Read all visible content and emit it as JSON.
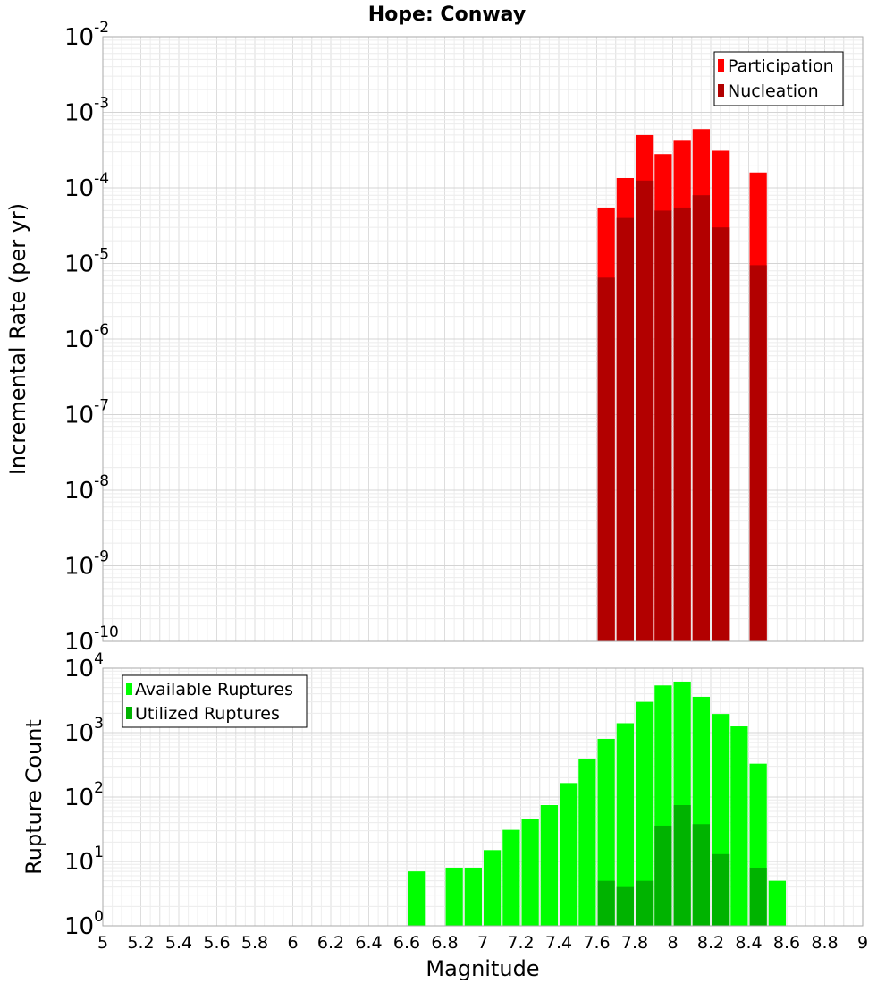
{
  "chart_data": [
    {
      "type": "bar",
      "title": "Hope: Conway",
      "ylabel": "Incremental Rate (per yr)",
      "y_scale": "log",
      "ylim": [
        1e-10,
        0.01
      ],
      "xlim": [
        5,
        9
      ],
      "y_tick_exponents": [
        "-10",
        "-9",
        "-8",
        "-7",
        "-6",
        "-5",
        "-4",
        "-3",
        "-2"
      ],
      "legend_position": "top-right",
      "grid": true,
      "x": [
        7.65,
        7.75,
        7.85,
        7.95,
        8.05,
        8.15,
        8.25,
        8.45
      ],
      "series": [
        {
          "name": "Participation",
          "color": "#ff0000",
          "values": [
            5.5e-05,
            0.000135,
            0.0005,
            0.00028,
            0.00042,
            0.0006,
            0.00031,
            0.00016
          ]
        },
        {
          "name": "Nucleation",
          "color": "#b20000",
          "values": [
            6.5e-06,
            4e-05,
            0.000125,
            5e-05,
            5.5e-05,
            8e-05,
            3e-05,
            9.5e-06
          ]
        }
      ]
    },
    {
      "type": "bar",
      "xlabel": "Magnitude",
      "ylabel": "Rupture Count",
      "y_scale": "log",
      "ylim": [
        1,
        10000
      ],
      "xlim": [
        5,
        9
      ],
      "x_ticks": [
        "5",
        "5.2",
        "5.4",
        "5.6",
        "5.8",
        "6",
        "6.2",
        "6.4",
        "6.6",
        "6.8",
        "7",
        "7.2",
        "7.4",
        "7.6",
        "7.8",
        "8",
        "8.2",
        "8.4",
        "8.6",
        "8.8",
        "9"
      ],
      "y_tick_exponents": [
        "0",
        "1",
        "2",
        "3",
        "4"
      ],
      "legend_position": "top-left",
      "grid": true,
      "x": [
        6.65,
        6.75,
        6.85,
        6.95,
        7.05,
        7.15,
        7.25,
        7.35,
        7.45,
        7.55,
        7.65,
        7.75,
        7.85,
        7.95,
        8.05,
        8.15,
        8.25,
        8.35,
        8.45,
        8.55
      ],
      "series": [
        {
          "name": "Available Ruptures",
          "color": "#00ff00",
          "values": [
            7,
            null,
            8,
            8,
            15,
            31,
            46,
            75,
            165,
            390,
            800,
            1400,
            3000,
            5400,
            6200,
            3600,
            1950,
            1250,
            330,
            5
          ]
        },
        {
          "name": "Utilized Ruptures",
          "color": "#00b300",
          "values": [
            null,
            null,
            null,
            null,
            null,
            null,
            null,
            null,
            null,
            null,
            5,
            4,
            5,
            36,
            75,
            38,
            13,
            null,
            8,
            null
          ]
        }
      ]
    }
  ]
}
